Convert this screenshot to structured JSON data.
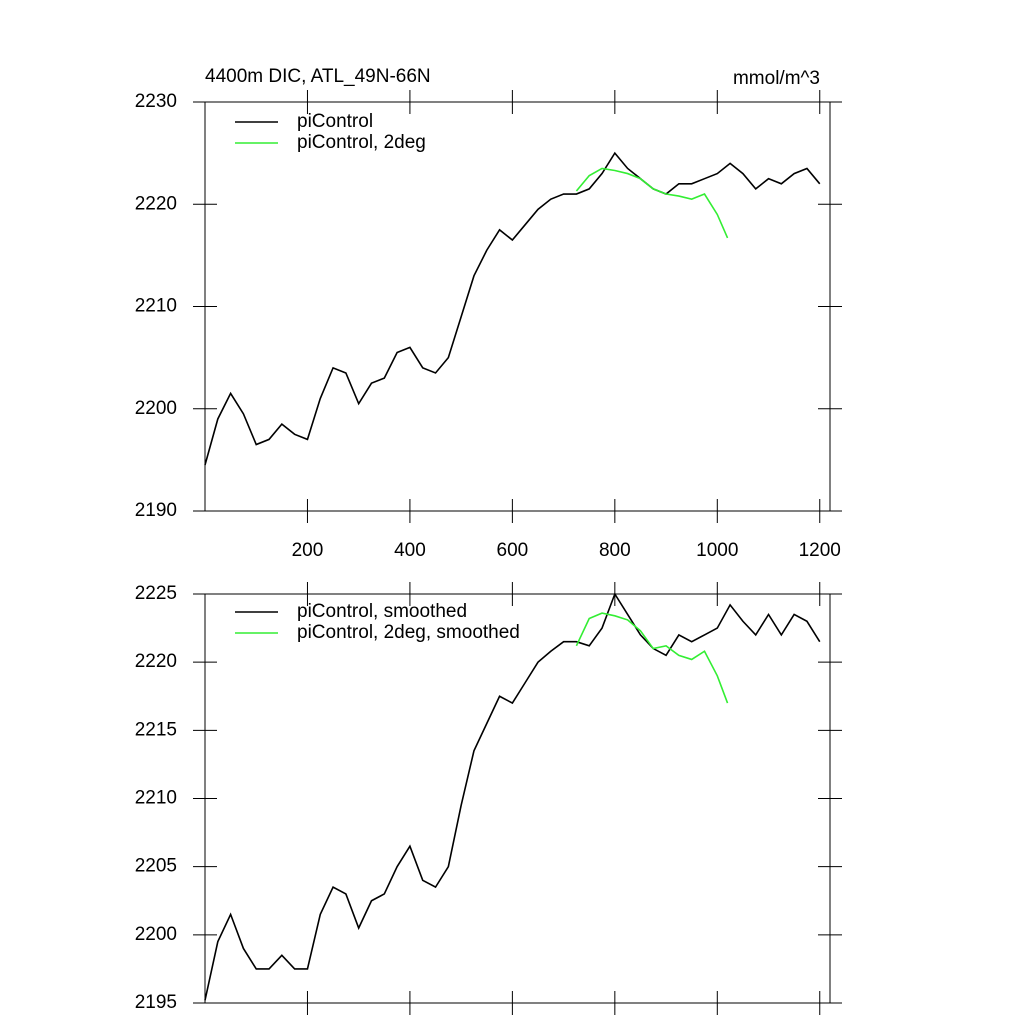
{
  "chart_data": [
    {
      "type": "line",
      "title": "4400m DIC, ATL_49N-66N",
      "subtitle": "mmol/m^3",
      "xlim": [
        0,
        1220
      ],
      "xticks": [
        200,
        400,
        600,
        800,
        1000,
        1200
      ],
      "ylim": [
        2190,
        2230
      ],
      "yticks": [
        2190,
        2200,
        2210,
        2220,
        2230
      ],
      "series": [
        {
          "name": "piControl",
          "color": "#000000",
          "x": [
            0,
            25,
            50,
            75,
            100,
            125,
            150,
            175,
            200,
            225,
            250,
            275,
            300,
            325,
            350,
            375,
            400,
            425,
            450,
            475,
            500,
            525,
            550,
            575,
            600,
            625,
            650,
            675,
            700,
            725,
            750,
            775,
            800,
            825,
            850,
            875,
            900,
            925,
            950,
            975,
            1000,
            1025,
            1050,
            1075,
            1100,
            1125,
            1150,
            1175,
            1200
          ],
          "values": [
            2194.5,
            2199,
            2201.5,
            2199.5,
            2196.5,
            2197,
            2198.5,
            2197.5,
            2197,
            2201,
            2204,
            2203.5,
            2200.5,
            2202.5,
            2203,
            2205.5,
            2206,
            2204,
            2203.5,
            2205,
            2209,
            2213,
            2215.5,
            2217.5,
            2216.5,
            2218,
            2219.5,
            2220.5,
            2221,
            2221,
            2221.5,
            2223,
            2225,
            2223.5,
            2222.5,
            2221.5,
            2221,
            2222,
            2222,
            2222.5,
            2223,
            2224,
            2223,
            2221.5,
            2222.5,
            2222,
            2223,
            2223.5,
            2222
          ]
        },
        {
          "name": "piControl, 2deg",
          "color": "#33ee33",
          "x": [
            725,
            750,
            775,
            800,
            825,
            850,
            875,
            900,
            925,
            950,
            975,
            1000,
            1020
          ],
          "values": [
            2221.3,
            2222.8,
            2223.5,
            2223.3,
            2223,
            2222.5,
            2221.5,
            2221,
            2220.8,
            2220.5,
            2221,
            2219,
            2216.7
          ]
        }
      ]
    },
    {
      "type": "line",
      "xlim": [
        0,
        1220
      ],
      "xticks": [
        200,
        400,
        600,
        800,
        1000,
        1200
      ],
      "ylim": [
        2195,
        2225
      ],
      "yticks": [
        2195,
        2200,
        2205,
        2210,
        2215,
        2220,
        2225
      ],
      "series": [
        {
          "name": "piControl, smoothed",
          "color": "#000000",
          "x": [
            0,
            25,
            50,
            75,
            100,
            125,
            150,
            175,
            200,
            225,
            250,
            275,
            300,
            325,
            350,
            375,
            400,
            425,
            450,
            475,
            500,
            525,
            550,
            575,
            600,
            625,
            650,
            675,
            700,
            725,
            750,
            775,
            800,
            825,
            850,
            875,
            900,
            925,
            950,
            975,
            1000,
            1025,
            1050,
            1075,
            1100,
            1125,
            1150,
            1175,
            1200
          ],
          "values": [
            2195.2,
            2199.5,
            2201.5,
            2199,
            2197.5,
            2197.5,
            2198.5,
            2197.5,
            2197.5,
            2201.5,
            2203.5,
            2203,
            2200.5,
            2202.5,
            2203,
            2205,
            2206.5,
            2204,
            2203.5,
            2205,
            2209.5,
            2213.5,
            2215.5,
            2217.5,
            2217,
            2218.5,
            2220,
            2220.8,
            2221.5,
            2221.5,
            2221.2,
            2222.5,
            2225,
            2223.5,
            2222,
            2221,
            2220.5,
            2222,
            2221.5,
            2222,
            2222.5,
            2224.2,
            2223,
            2222,
            2223.5,
            2222,
            2223.5,
            2223,
            2221.5
          ]
        },
        {
          "name": "piControl, 2deg, smoothed",
          "color": "#33ee33",
          "x": [
            725,
            750,
            775,
            800,
            825,
            850,
            875,
            900,
            925,
            950,
            975,
            1000,
            1020
          ],
          "values": [
            2221.2,
            2223.2,
            2223.6,
            2223.4,
            2223.1,
            2222.3,
            2221,
            2221.2,
            2220.5,
            2220.2,
            2220.8,
            2219,
            2217
          ]
        }
      ]
    }
  ]
}
